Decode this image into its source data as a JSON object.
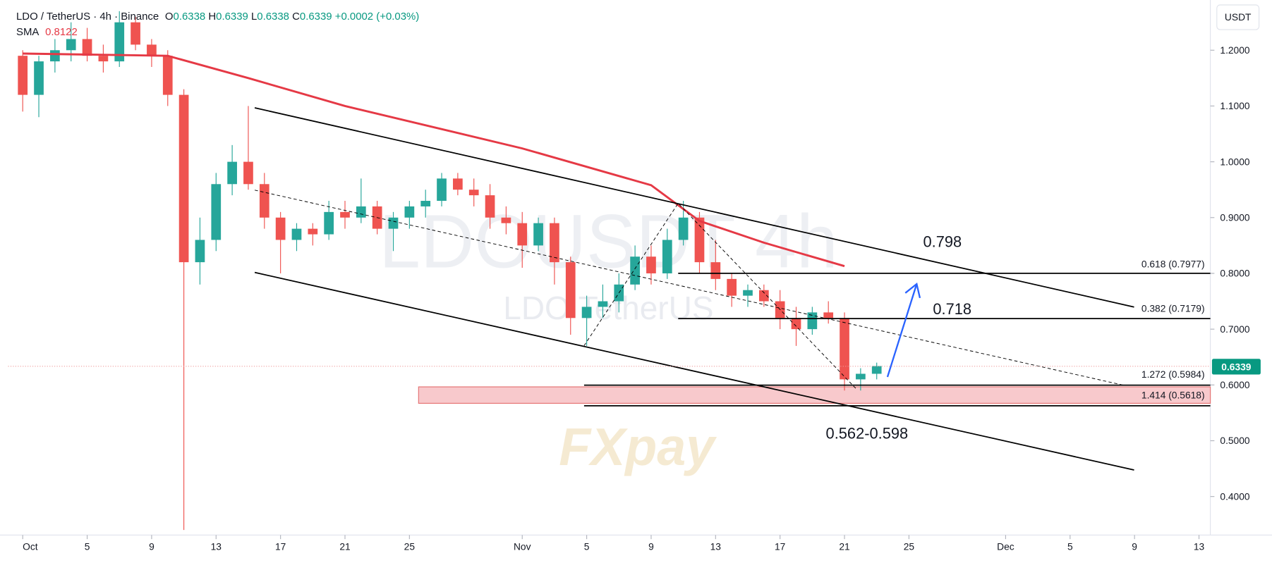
{
  "header": {
    "symbol": "LDO / TetherUS · 4h · Binance",
    "o_label": "O",
    "o": "0.6338",
    "h_label": "H",
    "h": "0.6339",
    "l_label": "L",
    "l": "0.6338",
    "c_label": "C",
    "c": "0.6339",
    "change": "+0.0002 (+0.03%)",
    "currency": "USDT"
  },
  "watermark": {
    "big": "LDOUSDT 4h",
    "small": "LDO TetherUS",
    "brand": "FXpay"
  },
  "annotations": {
    "fib_0618": "0.618 (0.7977)",
    "fib_0382": "0.382 (0.7179)",
    "fib_1272": "1.272 (0.5984)",
    "fib_1414": "1.414 (0.5618)",
    "target_1": "0.798",
    "target_2": "0.718",
    "zone": "0.562-0.598"
  },
  "chart_data": {
    "type": "candlestick",
    "x": [
      "Oct 1",
      "Oct 2",
      "Oct 3",
      "Oct 4",
      "Oct 5",
      "Oct 6",
      "Oct 7",
      "Oct 8",
      "Oct 9",
      "Oct 10",
      "Oct 11",
      "Oct 12",
      "Oct 13",
      "Oct 14",
      "Oct 15",
      "Oct 16",
      "Oct 17",
      "Oct 18",
      "Oct 19",
      "Oct 20",
      "Oct 21",
      "Oct 22",
      "Oct 23",
      "Oct 24",
      "Oct 25",
      "Oct 26",
      "Oct 27",
      "Oct 28",
      "Oct 29",
      "Oct 30",
      "Oct 31",
      "Nov 1",
      "Nov 2",
      "Nov 3",
      "Nov 4",
      "Nov 5",
      "Nov 6",
      "Nov 7",
      "Nov 8",
      "Nov 9",
      "Nov 10",
      "Nov 11",
      "Nov 12",
      "Nov 13",
      "Nov 14",
      "Nov 15",
      "Nov 16",
      "Nov 17",
      "Nov 18",
      "Nov 19",
      "Nov 20",
      "Nov 21",
      "Nov 22",
      "Nov 23"
    ],
    "open": [
      1.19,
      1.12,
      1.18,
      1.2,
      1.22,
      1.19,
      1.18,
      1.25,
      1.21,
      1.19,
      1.12,
      0.82,
      0.86,
      0.96,
      1.0,
      0.96,
      0.9,
      0.86,
      0.88,
      0.87,
      0.91,
      0.9,
      0.92,
      0.88,
      0.9,
      0.92,
      0.93,
      0.97,
      0.95,
      0.94,
      0.9,
      0.89,
      0.85,
      0.89,
      0.82,
      0.72,
      0.74,
      0.75,
      0.78,
      0.83,
      0.8,
      0.86,
      0.9,
      0.82,
      0.79,
      0.76,
      0.77,
      0.75,
      0.72,
      0.7,
      0.73,
      0.72,
      0.61,
      0.62
    ],
    "high": [
      1.2,
      1.19,
      1.22,
      1.25,
      1.24,
      1.21,
      1.27,
      1.26,
      1.22,
      1.2,
      1.13,
      0.9,
      0.98,
      1.03,
      1.1,
      0.98,
      0.91,
      0.89,
      0.89,
      0.93,
      0.93,
      0.97,
      0.93,
      0.91,
      0.93,
      0.95,
      0.98,
      0.98,
      0.97,
      0.96,
      0.92,
      0.91,
      0.9,
      0.9,
      0.83,
      0.76,
      0.78,
      0.8,
      0.85,
      0.85,
      0.88,
      0.93,
      0.91,
      0.86,
      0.8,
      0.78,
      0.78,
      0.77,
      0.74,
      0.74,
      0.75,
      0.73,
      0.63,
      0.64
    ],
    "low": [
      1.09,
      1.08,
      1.16,
      1.18,
      1.18,
      1.16,
      1.17,
      1.2,
      1.17,
      1.1,
      0.34,
      0.78,
      0.84,
      0.94,
      0.95,
      0.88,
      0.8,
      0.84,
      0.85,
      0.86,
      0.88,
      0.89,
      0.87,
      0.84,
      0.88,
      0.9,
      0.92,
      0.94,
      0.92,
      0.88,
      0.87,
      0.81,
      0.84,
      0.78,
      0.69,
      0.67,
      0.72,
      0.73,
      0.77,
      0.78,
      0.79,
      0.85,
      0.8,
      0.77,
      0.74,
      0.74,
      0.74,
      0.7,
      0.67,
      0.69,
      0.71,
      0.59,
      0.59,
      0.61
    ],
    "close": [
      1.12,
      1.18,
      1.2,
      1.22,
      1.19,
      1.18,
      1.25,
      1.21,
      1.19,
      1.12,
      0.82,
      0.86,
      0.96,
      1.0,
      0.96,
      0.9,
      0.86,
      0.88,
      0.87,
      0.91,
      0.9,
      0.92,
      0.88,
      0.9,
      0.92,
      0.93,
      0.97,
      0.95,
      0.94,
      0.9,
      0.89,
      0.85,
      0.89,
      0.82,
      0.72,
      0.74,
      0.75,
      0.78,
      0.83,
      0.8,
      0.86,
      0.9,
      0.82,
      0.79,
      0.76,
      0.77,
      0.75,
      0.72,
      0.7,
      0.73,
      0.72,
      0.61,
      0.62,
      0.6339
    ],
    "up_color": "#26a69a",
    "down_color": "#ef5350",
    "sma": {
      "name": "SMA",
      "value_label": "0.8122",
      "color": "#e53945",
      "x": [
        "Oct 1",
        "Oct 10",
        "Oct 15",
        "Oct 21",
        "Nov 1",
        "Nov 9",
        "Nov 12",
        "Nov 16",
        "Nov 21"
      ],
      "values": [
        1.194,
        1.19,
        1.15,
        1.1,
        1.024,
        0.958,
        0.894,
        0.855,
        0.813
      ]
    },
    "xlim": [
      "Oct 1",
      "Dec 13"
    ],
    "xticks": [
      {
        "value": "Oct 1",
        "label": "Oct"
      },
      {
        "value": "Oct 5",
        "label": "5"
      },
      {
        "value": "Oct 9",
        "label": "9"
      },
      {
        "value": "Oct 13",
        "label": "13"
      },
      {
        "value": "Oct 17",
        "label": "17"
      },
      {
        "value": "Oct 21",
        "label": "21"
      },
      {
        "value": "Oct 25",
        "label": "25"
      },
      {
        "value": "Nov 1",
        "label": "Nov"
      },
      {
        "value": "Nov 5",
        "label": "5"
      },
      {
        "value": "Nov 9",
        "label": "9"
      },
      {
        "value": "Nov 13",
        "label": "13"
      },
      {
        "value": "Nov 17",
        "label": "17"
      },
      {
        "value": "Nov 21",
        "label": "21"
      },
      {
        "value": "Nov 25",
        "label": "25"
      },
      {
        "value": "Dec 1",
        "label": "Dec"
      },
      {
        "value": "Dec 5",
        "label": "5"
      },
      {
        "value": "Dec 9",
        "label": "9"
      },
      {
        "value": "Dec 13",
        "label": "13"
      }
    ],
    "ylim": [
      0.331,
      1.29
    ],
    "yticks": [
      {
        "value": 1.2,
        "label": "1.2000"
      },
      {
        "value": 1.1,
        "label": "1.1000"
      },
      {
        "value": 1,
        "label": "1.0000"
      },
      {
        "value": 0.9,
        "label": "0.9000"
      },
      {
        "value": 0.8,
        "label": "0.8000"
      },
      {
        "value": 0.7,
        "label": "0.7000"
      },
      {
        "value": 0.6,
        "label": "0.6000"
      },
      {
        "value": 0.5,
        "label": "0.5000"
      },
      {
        "value": 0.4,
        "label": "0.4000"
      }
    ],
    "grid": false
  }
}
